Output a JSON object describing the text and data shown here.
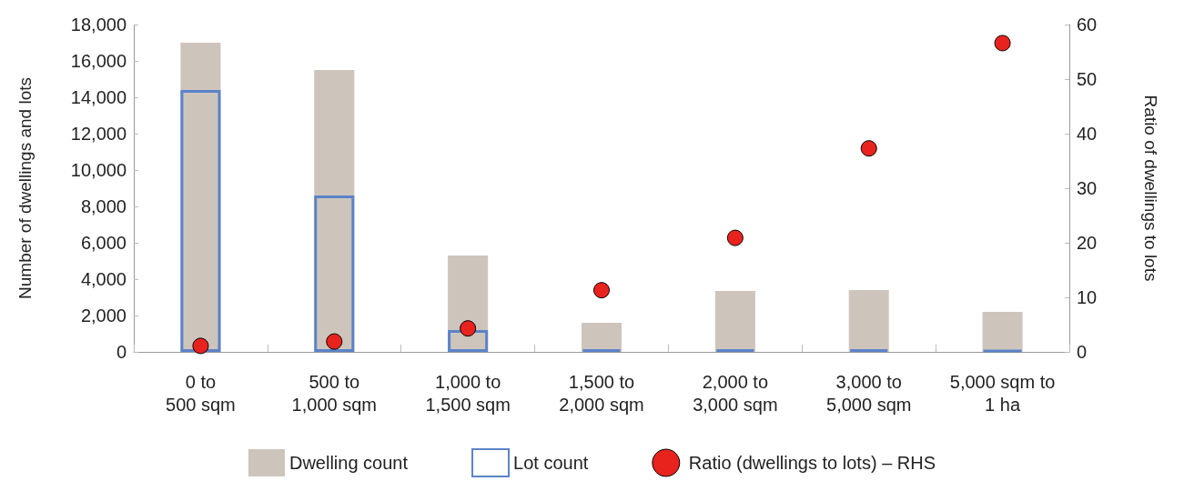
{
  "chart_data": {
    "type": "bar",
    "categories": [
      "0 to 500 sqm",
      "500 to 1,000 sqm",
      "1,000 to 1,500 sqm",
      "1,500 to 2,000 sqm",
      "2,000 to 3,000 sqm",
      "3,000 to 5,000 sqm",
      "5,000 sqm to 1 ha"
    ],
    "series": [
      {
        "name": "Dwelling count",
        "color": "#cdc5bc",
        "values": [
          17000,
          15500,
          5300,
          1600,
          3350,
          3400,
          2200
        ]
      },
      {
        "name": "Lot count",
        "color": "#5b83c9",
        "values": [
          14400,
          8600,
          1200,
          150,
          150,
          150,
          100
        ]
      },
      {
        "name": "Ratio (dwellings to lots) – RHS",
        "type": "scatter",
        "axis": "y2",
        "color": "#e8231e",
        "values": [
          1.1,
          1.9,
          4.3,
          11.3,
          20.9,
          37.3,
          56.6
        ]
      }
    ],
    "ylabel": "Number of dwellings and lots",
    "y2label": "Ratio of dwellings to lots",
    "ylim": [
      0,
      18000
    ],
    "yticks": [
      {
        "value": 0,
        "label": "0"
      },
      {
        "value": 2000,
        "label": "2,000"
      },
      {
        "value": 4000,
        "label": "4,000"
      },
      {
        "value": 6000,
        "label": "6,000"
      },
      {
        "value": 8000,
        "label": "8,000"
      },
      {
        "value": 10000,
        "label": "10,000"
      },
      {
        "value": 12000,
        "label": "12,000"
      },
      {
        "value": 14000,
        "label": "14,000"
      },
      {
        "value": 16000,
        "label": "16,000"
      },
      {
        "value": 18000,
        "label": "18,000"
      }
    ],
    "y2lim": [
      0,
      60
    ],
    "y2ticks": [
      0,
      10,
      20,
      30,
      40,
      50,
      60
    ],
    "marker": "circle",
    "legend": "bottom",
    "grid": false
  }
}
